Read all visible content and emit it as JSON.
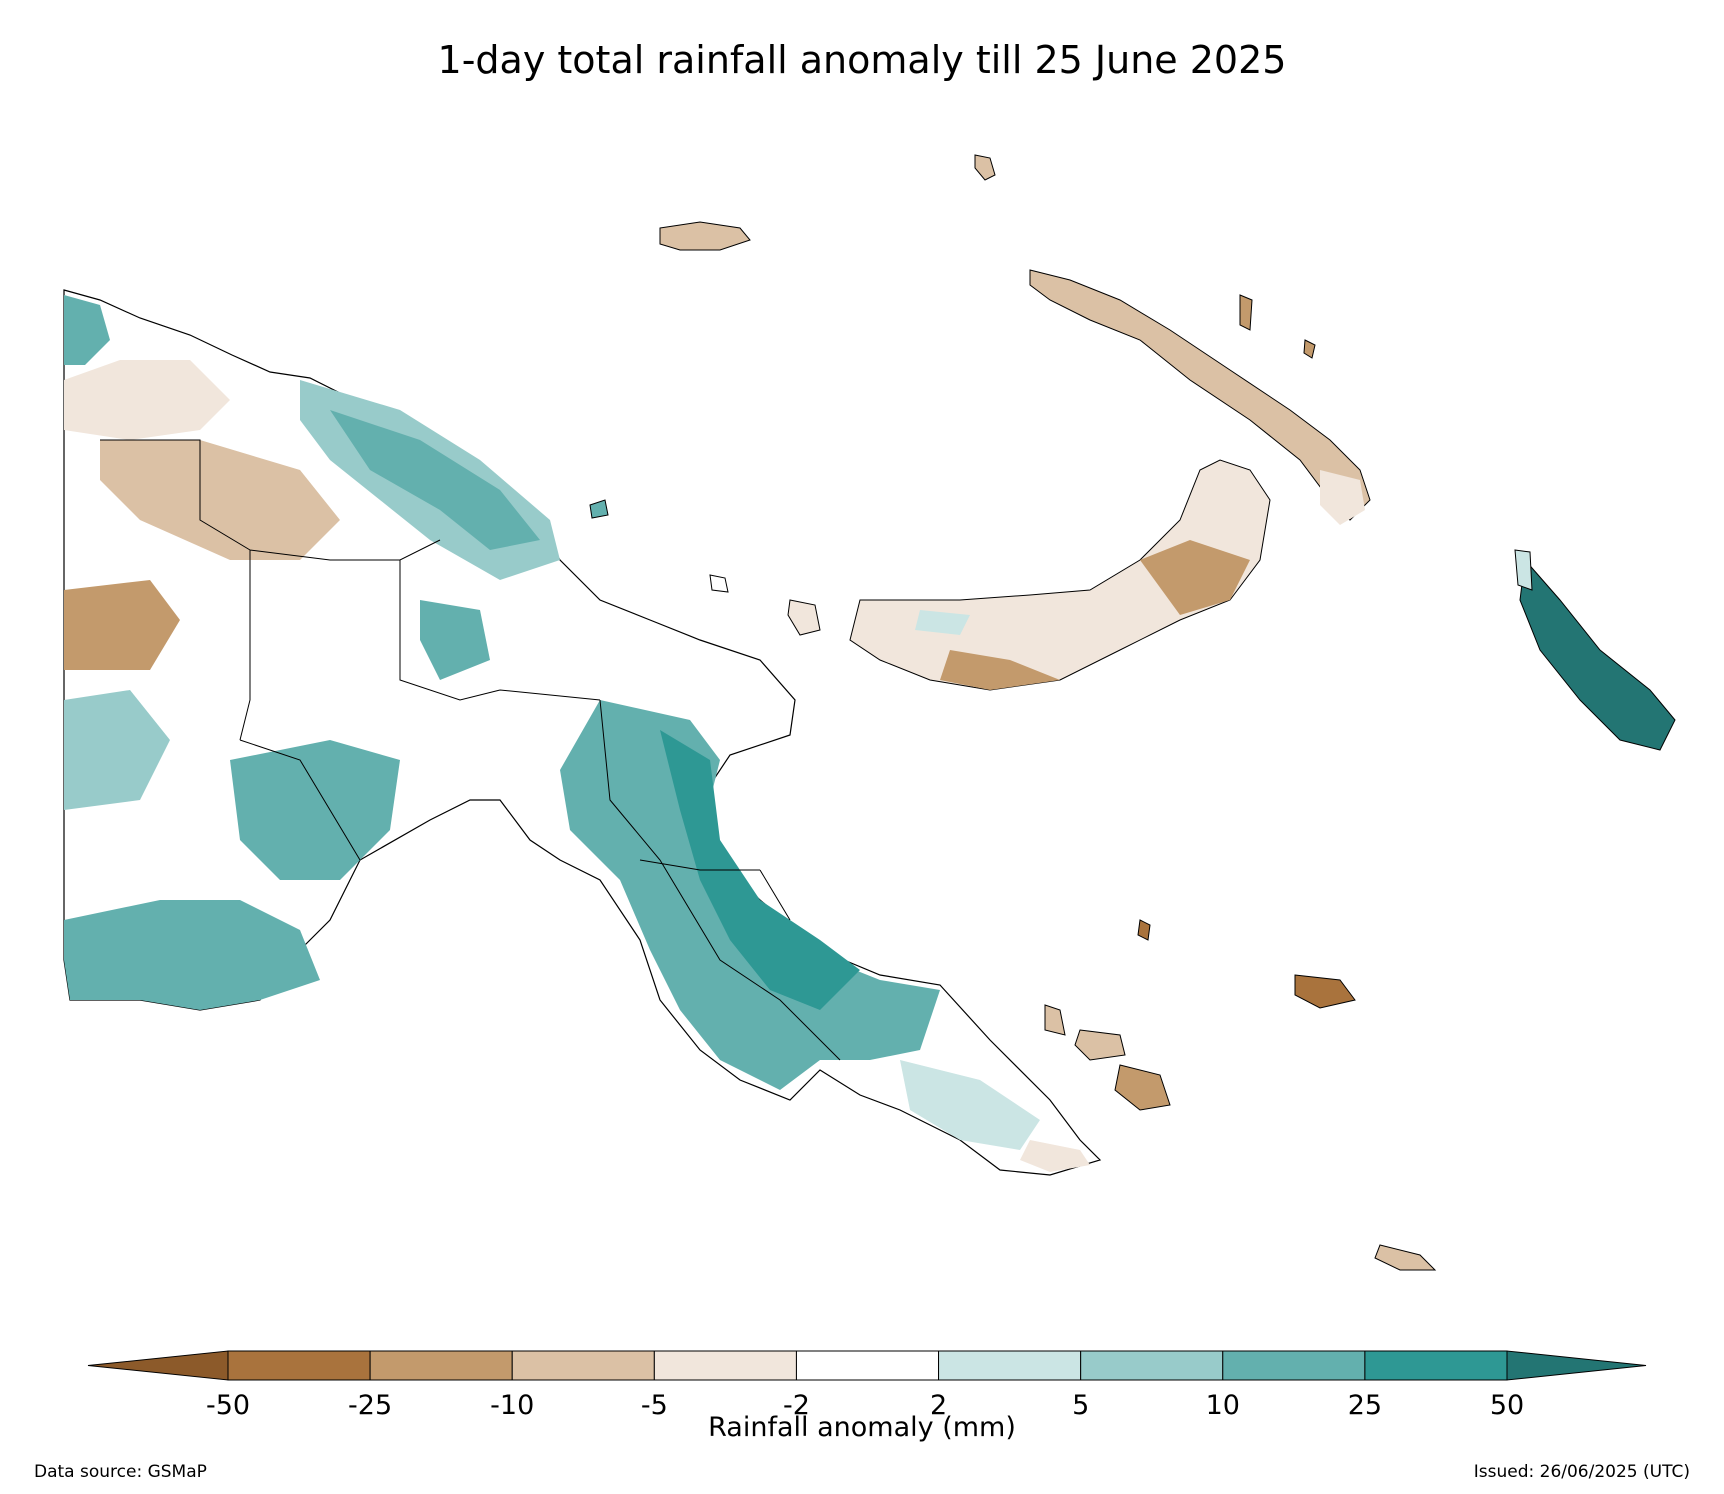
{
  "title": "1-day total rainfall anomaly till 25 June 2025",
  "colorbar": {
    "label": "Rainfall anomaly (mm)",
    "ticks": [
      "-50",
      "-25",
      "-10",
      "-5",
      "-2",
      "2",
      "5",
      "10",
      "25",
      "50"
    ],
    "colors": {
      "below_min": "#8c5a2a",
      "bins": [
        "#a9733d",
        "#c39a6c",
        "#dbc1a5",
        "#f1e6dc",
        "#ffffff",
        "#cbe5e4",
        "#98cbca",
        "#63b0ae",
        "#2e9894"
      ],
      "above_max": "#237573"
    }
  },
  "footer": {
    "source": "Data source: GSMaP",
    "issued": "Issued: 26/06/2025 (UTC)"
  }
}
